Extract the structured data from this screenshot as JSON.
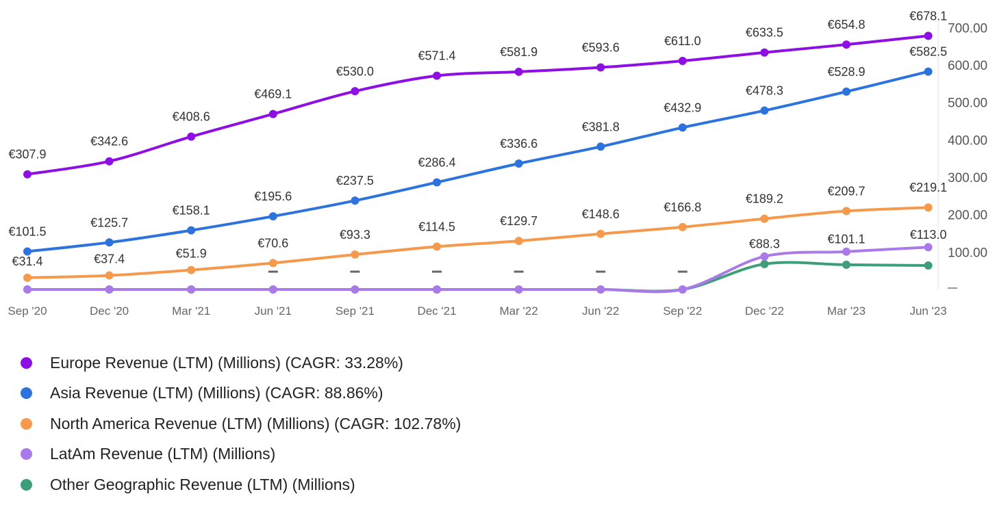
{
  "chart_data": {
    "type": "line",
    "categories": [
      "Sep '20",
      "Dec '20",
      "Mar '21",
      "Jun '21",
      "Sep '21",
      "Dec '21",
      "Mar '22",
      "Jun '22",
      "Sep '22",
      "Dec '22",
      "Mar '23",
      "Jun '23"
    ],
    "y_ticks": [
      "100.00",
      "200.00",
      "300.00",
      "400.00",
      "500.00",
      "600.00",
      "700.00"
    ],
    "y_tick_values": [
      100,
      200,
      300,
      400,
      500,
      600,
      700
    ],
    "ylim": [
      0,
      700
    ],
    "y_axis_position": "right",
    "grid": false,
    "legend_position": "bottom",
    "missing_marker": "–",
    "series": [
      {
        "name": "Europe Revenue (LTM) (Millions) (CAGR: 33.28%)",
        "color": "#8e0fe3",
        "values": [
          307.9,
          342.6,
          408.6,
          469.1,
          530.0,
          571.4,
          581.9,
          593.6,
          611.0,
          633.5,
          654.8,
          678.1
        ],
        "labels": [
          "€307.9",
          "€342.6",
          "€408.6",
          "€469.1",
          "€530.0",
          "€571.4",
          "€581.9",
          "€593.6",
          "€611.0",
          "€633.5",
          "€654.8",
          "€678.1"
        ]
      },
      {
        "name": "Asia Revenue (LTM) (Millions) (CAGR: 88.86%)",
        "color": "#2c73dd",
        "values": [
          101.5,
          125.7,
          158.1,
          195.6,
          237.5,
          286.4,
          336.6,
          381.8,
          432.9,
          478.3,
          528.9,
          582.5
        ],
        "labels": [
          "€101.5",
          "€125.7",
          "€158.1",
          "€195.6",
          "€237.5",
          "€286.4",
          "€336.6",
          "€381.8",
          "€432.9",
          "€478.3",
          "€528.9",
          "€582.5"
        ]
      },
      {
        "name": "North America Revenue (LTM) (Millions) (CAGR: 102.78%)",
        "color": "#f59a4c",
        "values": [
          31.4,
          37.4,
          51.9,
          70.6,
          93.3,
          114.5,
          129.7,
          148.6,
          166.8,
          189.2,
          209.7,
          219.1
        ],
        "labels": [
          "€31.4",
          "€37.4",
          "€51.9",
          "€70.6",
          "€93.3",
          "€114.5",
          "€129.7",
          "€148.6",
          "€166.8",
          "€189.2",
          "€209.7",
          "€219.1"
        ]
      },
      {
        "name": "LatAm Revenue (LTM) (Millions)",
        "color": "#a97ae8",
        "values": [
          0,
          0,
          0,
          0,
          0,
          0,
          0,
          0,
          0,
          88.3,
          101.1,
          113.0
        ],
        "labels": [
          "",
          "",
          "",
          "",
          "",
          "",
          "",
          "",
          "",
          "€88.3",
          "€101.1",
          "€113.0"
        ]
      },
      {
        "name": "Other Geographic Revenue (LTM) (Millions)",
        "color": "#3f9e7a",
        "values": [
          0,
          0,
          0,
          0,
          0,
          0,
          0,
          0,
          0,
          68,
          66,
          64
        ],
        "labels": [
          "",
          "",
          "",
          "",
          "",
          "",
          "",
          "",
          "",
          "",
          "",
          ""
        ]
      }
    ]
  }
}
